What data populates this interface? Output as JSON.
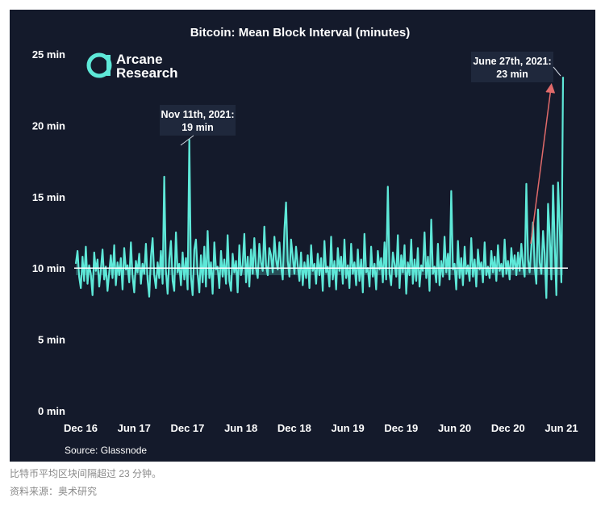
{
  "captions": {
    "line1": "比特币平均区块间隔超过 23 分钟。",
    "line2": "资料来源：奥术研究"
  },
  "logo": {
    "mark": "a",
    "line1": "Arcane",
    "line2": "Research"
  },
  "colors": {
    "background": "#141a2b",
    "series": "#5ee8d8",
    "reference_line": "#ffffff",
    "arrow": "#e06a6a",
    "annotation_box": "#1f283c",
    "text": "#ffffff"
  },
  "chart_data": {
    "type": "line",
    "title": "Bitcoin: Mean Block Interval (minutes)",
    "source": "Source: Glassnode",
    "xlabel": "",
    "ylabel": "",
    "x_ticks": [
      "Dec 16",
      "Jun 17",
      "Dec 17",
      "Jun 18",
      "Dec 18",
      "Jun 19",
      "Dec 19",
      "Jun 20",
      "Dec 20",
      "Jun 21"
    ],
    "y_ticks": [
      "0 min",
      "5 min",
      "10 min",
      "15 min",
      "20 min",
      "25 min"
    ],
    "ylim": [
      0,
      25
    ],
    "reference_line": 10,
    "grid": false,
    "annotations": [
      {
        "text": "Nov 11th, 2021:",
        "value": "19 min",
        "y": 19
      },
      {
        "text": "June 27th, 2021:",
        "value": "23 min",
        "y": 23
      }
    ],
    "series": [
      {
        "values": [
          10.3,
          11.2,
          9.4,
          8.6,
          10.8,
          9.1,
          11.5,
          8.9,
          10.2,
          9.6,
          8.1,
          11.1,
          9.8,
          10.6,
          8.7,
          9.9,
          11.3,
          9.2,
          10.1,
          8.4,
          9.7,
          10.9,
          9.3,
          11.6,
          8.8,
          10.4,
          9.5,
          10.7,
          8.5,
          11.4,
          9.9,
          10.2,
          9.0,
          11.8,
          9.4,
          8.3,
          10.5,
          9.7,
          11.0,
          8.9,
          10.3,
          9.6,
          11.7,
          9.2,
          8.0,
          10.8,
          12.1,
          9.5,
          8.6,
          10.4,
          9.3,
          11.2,
          8.9,
          16.4,
          9.8,
          8.2,
          10.6,
          11.9,
          9.1,
          8.4,
          12.5,
          9.7,
          10.3,
          8.8,
          11.1,
          9.2,
          10.7,
          8.5,
          19.0,
          9.4,
          8.1,
          11.3,
          12.0,
          9.6,
          8.3,
          10.9,
          9.0,
          11.5,
          8.7,
          12.6,
          9.3,
          10.4,
          8.2,
          11.8,
          9.9,
          10.1,
          8.6,
          11.2,
          9.4,
          10.6,
          8.9,
          12.3,
          9.1,
          8.4,
          11.0,
          9.7,
          10.5,
          8.3,
          11.6,
          9.5,
          10.2,
          12.4,
          9.0,
          10.8,
          8.7,
          11.3,
          9.6,
          12.1,
          10.0,
          9.3,
          11.7,
          10.4,
          9.8,
          12.9,
          10.2,
          9.5,
          11.4,
          10.9,
          9.7,
          12.2,
          10.6,
          9.9,
          11.8,
          10.1,
          9.2,
          12.7,
          14.6,
          10.5,
          9.4,
          12.0,
          10.8,
          9.6,
          11.5,
          10.2,
          9.1,
          11.1,
          8.8,
          10.4,
          9.3,
          10.9,
          8.6,
          11.6,
          9.8,
          10.3,
          8.9,
          11.0,
          9.5,
          10.7,
          8.4,
          11.9,
          9.7,
          10.1,
          8.7,
          12.2,
          9.2,
          10.5,
          8.5,
          11.4,
          9.8,
          10.8,
          8.9,
          12.0,
          9.3,
          10.2,
          8.6,
          11.7,
          9.6,
          10.4,
          8.8,
          11.3,
          9.1,
          10.6,
          8.3,
          12.4,
          9.7,
          10.0,
          8.7,
          11.5,
          9.4,
          10.3,
          8.5,
          11.2,
          9.9,
          10.7,
          9.0,
          11.8,
          9.2,
          15.7,
          9.6,
          8.8,
          11.1,
          10.3,
          9.4,
          12.3,
          8.6,
          10.9,
          9.7,
          11.6,
          8.2,
          10.4,
          9.5,
          12.0,
          8.9,
          10.6,
          9.1,
          11.4,
          8.7,
          10.2,
          9.8,
          12.5,
          9.3,
          10.8,
          8.4,
          13.4,
          9.6,
          10.1,
          9.0,
          11.7,
          8.8,
          10.5,
          9.4,
          12.2,
          9.7,
          11.0,
          9.2,
          15.4,
          9.9,
          10.3,
          8.5,
          11.9,
          9.3,
          10.7,
          8.8,
          11.5,
          9.6,
          10.2,
          9.1,
          12.1,
          9.4,
          10.6,
          8.7,
          11.3,
          9.9,
          10.4,
          9.0,
          11.8,
          9.5,
          10.1,
          9.3,
          11.2,
          9.7,
          10.8,
          9.1,
          11.6,
          9.8,
          10.3,
          9.4,
          12.0,
          9.6,
          10.5,
          9.2,
          11.4,
          9.9,
          10.9,
          9.5,
          11.1,
          9.8,
          11.7,
          10.2,
          9.4,
          15.9,
          10.6,
          9.7,
          11.5,
          13.2,
          10.1,
          8.9,
          14.1,
          10.4,
          9.6,
          12.6,
          11.0,
          7.9,
          14.5,
          12.2,
          9.2,
          15.8,
          11.6,
          8.1,
          16.0,
          12.8,
          9.0,
          23.4
        ]
      }
    ]
  }
}
